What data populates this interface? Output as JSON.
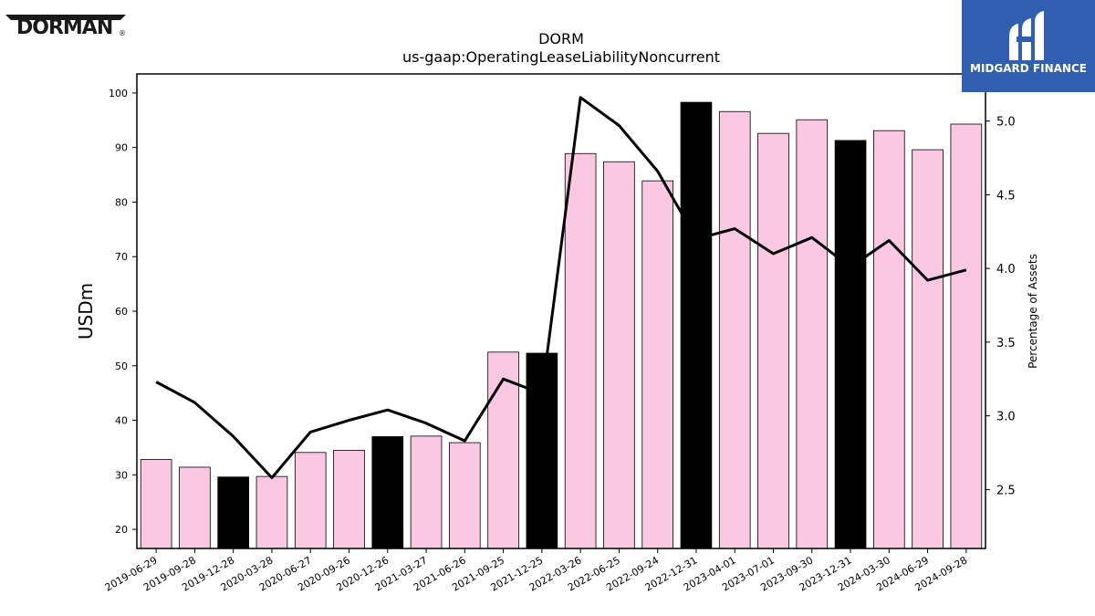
{
  "brand": {
    "left_logo": "DORMAN",
    "left_logo_reg": "®",
    "right_logo": "MIDGARD FINANCE"
  },
  "colors": {
    "bar_default": "#fbc8e4",
    "bar_highlight": "#000000",
    "line": "#000000",
    "brand_blue": "#2f5fae"
  },
  "chart_data": {
    "type": "bar",
    "title": "DORM",
    "subtitle": "us-gaap:OperatingLeaseLiabilityNoncurrent",
    "ylabel": "USDm",
    "y2label": "Percentage of Assets",
    "ylim": [
      16.5,
      103.5
    ],
    "y2lim": [
      2.1,
      5.32
    ],
    "yticks": [
      20,
      30,
      40,
      50,
      60,
      70,
      80,
      90,
      100
    ],
    "y2ticks": [
      2.5,
      3.0,
      3.5,
      4.0,
      4.5,
      5.0
    ],
    "categories": [
      "2019-06-29",
      "2019-09-28",
      "2019-12-28",
      "2020-03-28",
      "2020-06-27",
      "2020-09-26",
      "2020-12-26",
      "2021-03-27",
      "2021-06-26",
      "2021-09-25",
      "2021-12-25",
      "2022-03-26",
      "2022-06-25",
      "2022-09-24",
      "2022-12-31",
      "2023-04-01",
      "2023-07-01",
      "2023-09-30",
      "2023-12-31",
      "2024-03-30",
      "2024-06-29",
      "2024-09-28"
    ],
    "series": [
      {
        "type": "bar",
        "axis": "left",
        "values": [
          32.8,
          31.4,
          29.6,
          29.7,
          34.1,
          34.5,
          37.0,
          37.1,
          35.9,
          52.5,
          52.3,
          88.9,
          87.4,
          83.9,
          98.3,
          96.6,
          92.6,
          95.1,
          91.3,
          93.1,
          89.6,
          94.3
        ],
        "highlight": [
          false,
          false,
          true,
          false,
          false,
          false,
          true,
          false,
          false,
          false,
          true,
          false,
          false,
          false,
          true,
          false,
          false,
          false,
          true,
          false,
          false,
          false
        ]
      },
      {
        "type": "line",
        "axis": "right",
        "values": [
          3.23,
          3.09,
          2.86,
          2.58,
          2.89,
          2.97,
          3.04,
          2.95,
          2.83,
          3.25,
          3.15,
          5.16,
          4.97,
          4.66,
          4.2,
          4.27,
          4.1,
          4.21,
          4.01,
          4.19,
          3.92,
          3.99
        ]
      }
    ],
    "grid": false,
    "legend": "none"
  }
}
